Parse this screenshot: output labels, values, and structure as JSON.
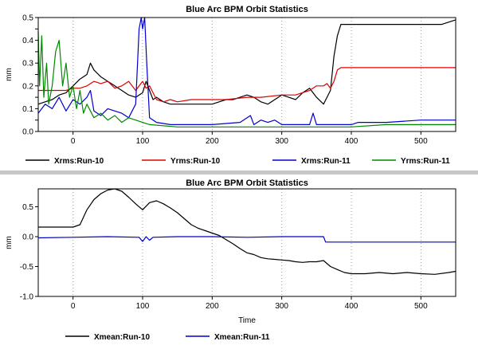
{
  "chart_data": [
    {
      "type": "line",
      "title": "Blue Arc BPM Orbit Statistics",
      "xlabel": "",
      "ylabel": "mm",
      "xlim": [
        -50,
        550
      ],
      "ylim": [
        0,
        0.5
      ],
      "xticks": [
        0,
        100,
        200,
        300,
        400,
        500
      ],
      "yticks": [
        0,
        0.05,
        0.1,
        0.15,
        0.2,
        0.25,
        0.3,
        0.35,
        0.4,
        0.45,
        0.5
      ],
      "x_tick_labels": [
        "0",
        "100",
        "200",
        "300",
        "400",
        "500"
      ],
      "y_tick_labels": [
        "0.0",
        "",
        "0.1",
        "",
        "0.2",
        "",
        "0.3",
        "",
        "0.4",
        "",
        "0.5"
      ],
      "grid": "vertical-dotted",
      "legend": "bottom",
      "series": [
        {
          "name": "Xrms:Run-10",
          "color": "#000000",
          "points": [
            [
              -50,
              0.12
            ],
            [
              -40,
              0.13
            ],
            [
              -30,
              0.14
            ],
            [
              -20,
              0.16
            ],
            [
              -10,
              0.17
            ],
            [
              0,
              0.2
            ],
            [
              10,
              0.23
            ],
            [
              20,
              0.25
            ],
            [
              25,
              0.3
            ],
            [
              30,
              0.27
            ],
            [
              40,
              0.24
            ],
            [
              50,
              0.22
            ],
            [
              60,
              0.2
            ],
            [
              70,
              0.18
            ],
            [
              80,
              0.16
            ],
            [
              90,
              0.15
            ],
            [
              100,
              0.17
            ],
            [
              105,
              0.22
            ],
            [
              110,
              0.18
            ],
            [
              115,
              0.14
            ],
            [
              120,
              0.15
            ],
            [
              130,
              0.13
            ],
            [
              140,
              0.12
            ],
            [
              150,
              0.12
            ],
            [
              160,
              0.12
            ],
            [
              180,
              0.12
            ],
            [
              200,
              0.12
            ],
            [
              210,
              0.13
            ],
            [
              220,
              0.14
            ],
            [
              230,
              0.14
            ],
            [
              240,
              0.15
            ],
            [
              250,
              0.16
            ],
            [
              260,
              0.15
            ],
            [
              270,
              0.13
            ],
            [
              280,
              0.12
            ],
            [
              290,
              0.14
            ],
            [
              300,
              0.16
            ],
            [
              310,
              0.15
            ],
            [
              320,
              0.14
            ],
            [
              330,
              0.17
            ],
            [
              340,
              0.19
            ],
            [
              350,
              0.15
            ],
            [
              360,
              0.12
            ],
            [
              370,
              0.18
            ],
            [
              375,
              0.33
            ],
            [
              380,
              0.42
            ],
            [
              385,
              0.47
            ],
            [
              400,
              0.47
            ],
            [
              450,
              0.47
            ],
            [
              500,
              0.47
            ],
            [
              530,
              0.47
            ],
            [
              550,
              0.49
            ]
          ]
        },
        {
          "name": "Yrms:Run-10",
          "color": "#dd0000",
          "points": [
            [
              -50,
              0.18
            ],
            [
              -30,
              0.18
            ],
            [
              -10,
              0.18
            ],
            [
              0,
              0.19
            ],
            [
              10,
              0.19
            ],
            [
              20,
              0.2
            ],
            [
              30,
              0.22
            ],
            [
              40,
              0.21
            ],
            [
              50,
              0.22
            ],
            [
              60,
              0.19
            ],
            [
              70,
              0.2
            ],
            [
              80,
              0.22
            ],
            [
              90,
              0.18
            ],
            [
              100,
              0.22
            ],
            [
              105,
              0.19
            ],
            [
              110,
              0.2
            ],
            [
              115,
              0.17
            ],
            [
              120,
              0.14
            ],
            [
              130,
              0.13
            ],
            [
              140,
              0.14
            ],
            [
              150,
              0.13
            ],
            [
              170,
              0.14
            ],
            [
              200,
              0.14
            ],
            [
              220,
              0.14
            ],
            [
              250,
              0.15
            ],
            [
              270,
              0.15
            ],
            [
              300,
              0.16
            ],
            [
              320,
              0.16
            ],
            [
              340,
              0.18
            ],
            [
              350,
              0.2
            ],
            [
              360,
              0.2
            ],
            [
              365,
              0.21
            ],
            [
              370,
              0.19
            ],
            [
              375,
              0.22
            ],
            [
              380,
              0.27
            ],
            [
              385,
              0.28
            ],
            [
              400,
              0.28
            ],
            [
              450,
              0.28
            ],
            [
              500,
              0.28
            ],
            [
              550,
              0.28
            ]
          ]
        },
        {
          "name": "Xrms:Run-11",
          "color": "#0000cc",
          "points": [
            [
              -50,
              0.08
            ],
            [
              -40,
              0.12
            ],
            [
              -30,
              0.1
            ],
            [
              -20,
              0.15
            ],
            [
              -10,
              0.09
            ],
            [
              0,
              0.14
            ],
            [
              10,
              0.12
            ],
            [
              20,
              0.15
            ],
            [
              25,
              0.18
            ],
            [
              30,
              0.09
            ],
            [
              40,
              0.07
            ],
            [
              50,
              0.1
            ],
            [
              60,
              0.09
            ],
            [
              70,
              0.08
            ],
            [
              80,
              0.06
            ],
            [
              90,
              0.12
            ],
            [
              95,
              0.45
            ],
            [
              98,
              0.5
            ],
            [
              100,
              0.45
            ],
            [
              103,
              0.5
            ],
            [
              106,
              0.3
            ],
            [
              110,
              0.06
            ],
            [
              120,
              0.04
            ],
            [
              140,
              0.03
            ],
            [
              160,
              0.03
            ],
            [
              200,
              0.03
            ],
            [
              240,
              0.04
            ],
            [
              255,
              0.07
            ],
            [
              260,
              0.03
            ],
            [
              270,
              0.05
            ],
            [
              280,
              0.04
            ],
            [
              290,
              0.05
            ],
            [
              300,
              0.03
            ],
            [
              340,
              0.03
            ],
            [
              345,
              0.08
            ],
            [
              350,
              0.03
            ],
            [
              400,
              0.03
            ],
            [
              410,
              0.04
            ],
            [
              450,
              0.04
            ],
            [
              500,
              0.05
            ],
            [
              550,
              0.05
            ]
          ]
        },
        {
          "name": "Yrms:Run-11",
          "color": "#008800",
          "points": [
            [
              -50,
              0.44
            ],
            [
              -48,
              0.2
            ],
            [
              -45,
              0.42
            ],
            [
              -42,
              0.15
            ],
            [
              -38,
              0.3
            ],
            [
              -35,
              0.12
            ],
            [
              -30,
              0.2
            ],
            [
              -25,
              0.35
            ],
            [
              -20,
              0.4
            ],
            [
              -15,
              0.2
            ],
            [
              -10,
              0.3
            ],
            [
              -5,
              0.15
            ],
            [
              0,
              0.2
            ],
            [
              5,
              0.1
            ],
            [
              10,
              0.18
            ],
            [
              15,
              0.08
            ],
            [
              20,
              0.12
            ],
            [
              30,
              0.06
            ],
            [
              40,
              0.08
            ],
            [
              50,
              0.05
            ],
            [
              60,
              0.07
            ],
            [
              70,
              0.04
            ],
            [
              80,
              0.06
            ],
            [
              90,
              0.05
            ],
            [
              100,
              0.04
            ],
            [
              110,
              0.03
            ],
            [
              150,
              0.02
            ],
            [
              200,
              0.02
            ],
            [
              260,
              0.02
            ],
            [
              300,
              0.02
            ],
            [
              360,
              0.02
            ],
            [
              400,
              0.02
            ],
            [
              450,
              0.03
            ],
            [
              500,
              0.03
            ],
            [
              550,
              0.03
            ]
          ]
        }
      ]
    },
    {
      "type": "line",
      "title": "Blue Arc BPM Orbit Statistics",
      "xlabel": "Time",
      "ylabel": "mm",
      "xlim": [
        -50,
        550
      ],
      "ylim": [
        -1.0,
        0.8
      ],
      "xticks": [
        0,
        100,
        200,
        300,
        400,
        500
      ],
      "yticks": [
        -1.0,
        -0.5,
        0.0,
        0.5
      ],
      "x_tick_labels": [
        "0",
        "100",
        "200",
        "300",
        "400",
        "500"
      ],
      "y_tick_labels": [
        "-1.0",
        "-0.5",
        "0.0",
        "0.5"
      ],
      "grid": "vertical-dotted",
      "legend": "bottom",
      "series": [
        {
          "name": "Xmean:Run-10",
          "color": "#000000",
          "points": [
            [
              -50,
              0.16
            ],
            [
              -20,
              0.16
            ],
            [
              0,
              0.16
            ],
            [
              10,
              0.2
            ],
            [
              20,
              0.45
            ],
            [
              30,
              0.62
            ],
            [
              40,
              0.72
            ],
            [
              50,
              0.78
            ],
            [
              60,
              0.8
            ],
            [
              70,
              0.76
            ],
            [
              80,
              0.66
            ],
            [
              90,
              0.55
            ],
            [
              100,
              0.45
            ],
            [
              110,
              0.57
            ],
            [
              120,
              0.6
            ],
            [
              130,
              0.55
            ],
            [
              140,
              0.48
            ],
            [
              150,
              0.4
            ],
            [
              160,
              0.3
            ],
            [
              170,
              0.2
            ],
            [
              180,
              0.14
            ],
            [
              190,
              0.1
            ],
            [
              200,
              0.06
            ],
            [
              210,
              0.02
            ],
            [
              220,
              -0.05
            ],
            [
              230,
              -0.12
            ],
            [
              240,
              -0.2
            ],
            [
              250,
              -0.27
            ],
            [
              260,
              -0.3
            ],
            [
              270,
              -0.35
            ],
            [
              280,
              -0.37
            ],
            [
              290,
              -0.38
            ],
            [
              300,
              -0.39
            ],
            [
              310,
              -0.4
            ],
            [
              320,
              -0.42
            ],
            [
              330,
              -0.43
            ],
            [
              340,
              -0.42
            ],
            [
              350,
              -0.42
            ],
            [
              360,
              -0.4
            ],
            [
              370,
              -0.5
            ],
            [
              380,
              -0.55
            ],
            [
              390,
              -0.6
            ],
            [
              400,
              -0.62
            ],
            [
              420,
              -0.62
            ],
            [
              440,
              -0.6
            ],
            [
              460,
              -0.62
            ],
            [
              480,
              -0.6
            ],
            [
              500,
              -0.62
            ],
            [
              520,
              -0.63
            ],
            [
              540,
              -0.6
            ],
            [
              550,
              -0.58
            ]
          ]
        },
        {
          "name": "Xmean:Run-11",
          "color": "#0000cc",
          "points": [
            [
              -50,
              -0.02
            ],
            [
              0,
              -0.01
            ],
            [
              50,
              0.0
            ],
            [
              95,
              -0.01
            ],
            [
              100,
              -0.08
            ],
            [
              105,
              0.0
            ],
            [
              110,
              -0.06
            ],
            [
              115,
              -0.01
            ],
            [
              150,
              0.0
            ],
            [
              200,
              0.0
            ],
            [
              250,
              -0.01
            ],
            [
              300,
              0.0
            ],
            [
              360,
              0.0
            ],
            [
              363,
              -0.09
            ],
            [
              400,
              -0.09
            ],
            [
              450,
              -0.09
            ],
            [
              500,
              -0.09
            ],
            [
              550,
              -0.09
            ]
          ]
        }
      ]
    }
  ]
}
